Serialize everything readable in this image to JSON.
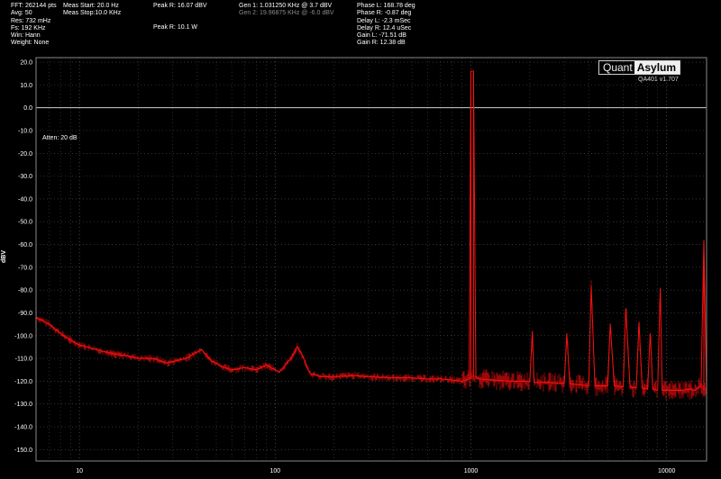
{
  "header": {
    "col1": [
      "FFT: 262144 pts",
      "Avg: 50",
      "Res: 732 mHz",
      "Fs: 192 KHz",
      "Win: Hann",
      "Weight: None"
    ],
    "col2": [
      "Meas Start: 20.0 Hz",
      "Meas Stop:10.0 KHz"
    ],
    "col3": [
      "Peak R: 16.07 dBV",
      "Peak R: 10.1 W"
    ],
    "gen1": "Gen 1: 1.031250 KHz @ 3.7  dBV",
    "gen2": "Gen 2: 19.96875 KHz @ -6.0  dBV",
    "col5": [
      "Phase L: 168.78 deg",
      "Phase R: -0.87 deg",
      "Delay L: -2.3 mSec",
      "Delay R: 12.4 uSec",
      "Gain L: -71.51 dB",
      "Gain R: 12.38 dB"
    ]
  },
  "logo": {
    "part1": "Quant",
    "part2": "Asylum"
  },
  "version": "QA401 v1.707",
  "atten": "Atten: 20 dB",
  "colors": {
    "background": "#000000",
    "trace": "#ff1010",
    "grid": "#555555",
    "zero_line": "#d0d0d0"
  },
  "chart_data": {
    "type": "line",
    "xscale": "log",
    "xlim": [
      6,
      16000
    ],
    "ylim": [
      -155,
      22
    ],
    "ylabel": "dBV",
    "xticks": [
      10,
      100,
      1000,
      10000
    ],
    "xtick_labels": [
      "10",
      "100",
      "1000",
      "10000"
    ],
    "yticks": [
      20,
      10,
      0,
      -10,
      -20,
      -30,
      -40,
      -50,
      -60,
      -70,
      -80,
      -90,
      -100,
      -110,
      -120,
      -130,
      -140,
      -150
    ],
    "ytick_labels": [
      "20.0",
      "10.0",
      "0.0",
      "-10.0",
      "-20.0",
      "-30.0",
      "-40.0",
      "-50.0",
      "-60.0",
      "-70.0",
      "-80.0",
      "-90.0",
      "-100.0",
      "-110.0",
      "-120.0",
      "-130.0",
      "-140.0",
      "-150.0"
    ],
    "reference_line_y": 0,
    "grid": true,
    "series": [
      {
        "x": [
          6,
          7,
          8,
          9,
          10,
          12,
          15,
          18,
          20,
          22,
          24,
          28,
          35,
          42,
          47,
          50,
          52,
          55,
          60,
          70,
          80,
          90,
          100,
          105,
          110,
          120,
          130,
          140,
          147,
          150,
          153,
          158,
          170,
          200,
          250,
          300,
          400,
          500,
          600,
          700,
          800,
          900,
          980,
          1000,
          1031,
          1060,
          1100,
          1300,
          1600,
          2000,
          2060,
          2100,
          2500,
          3000,
          3090,
          3200,
          3500,
          4000,
          4120,
          4300,
          5000,
          5150,
          5400,
          6000,
          6190,
          6500,
          7000,
          7220,
          7500,
          8000,
          8250,
          8500,
          9000,
          9280,
          9500,
          10000,
          11000,
          12000,
          13000,
          14000,
          15000,
          15500,
          16000
        ],
        "y": [
          -92,
          -95,
          -99,
          -102,
          -104,
          -106,
          -108,
          -109,
          -110,
          -110,
          -110,
          -112,
          -110,
          -106,
          -111,
          -112,
          -113,
          -114,
          -115,
          -114,
          -115,
          -113,
          -115,
          -116,
          -114,
          -110,
          -105,
          -110,
          -115,
          -116,
          -117,
          -117,
          -118,
          -118,
          -117.5,
          -118,
          -118.5,
          -118.5,
          -119,
          -119,
          -119.5,
          -120,
          -119,
          16.07,
          16.07,
          -118,
          -119,
          -119.5,
          -120,
          -120,
          -98,
          -120.5,
          -120.5,
          -121,
          -99,
          -121,
          -121.5,
          -122,
          -78,
          -122,
          -122,
          -95,
          -122,
          -122.5,
          -88,
          -122.5,
          -123,
          -94,
          -123,
          -123.5,
          -99,
          -123.5,
          -124,
          -79,
          -124,
          -124,
          -124,
          -124,
          -123.5,
          -124,
          -122,
          -58,
          -126
        ]
      }
    ]
  }
}
